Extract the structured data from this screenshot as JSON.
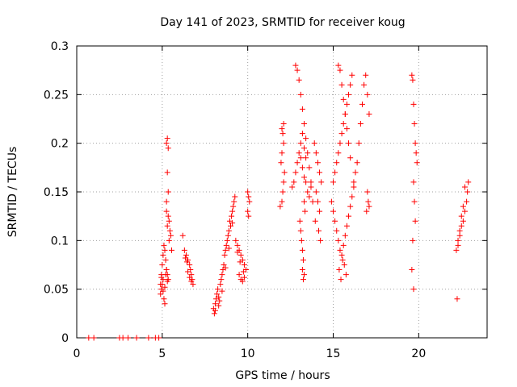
{
  "chart_data": {
    "type": "scatter",
    "title": "Day 141 of 2023, SRMTID for receiver koug",
    "xlabel": "GPS time / hours",
    "ylabel": "SRMTID / TECUs",
    "xlim": [
      0,
      24
    ],
    "ylim": [
      0,
      0.3
    ],
    "xticks": [
      0,
      5,
      10,
      15,
      20
    ],
    "xtick_labels": [
      "0",
      "5",
      "10",
      "15",
      "20"
    ],
    "yticks": [
      0,
      0.05,
      0.1,
      0.15,
      0.2,
      0.25,
      0.3
    ],
    "ytick_labels": [
      "0",
      "0.05",
      "0.1",
      "0.15",
      "0.2",
      "0.25",
      "0.3"
    ],
    "grid": true,
    "marker": "+",
    "color": "#ff0000",
    "series": [
      {
        "name": "SRMTID",
        "x": [
          0.7,
          1.0,
          2.5,
          2.7,
          3.0,
          3.5,
          4.2,
          4.6,
          4.8,
          4.9,
          4.95,
          5.0,
          5.05,
          5.1,
          5.15,
          5.2,
          5.25,
          5.3,
          5.35,
          5.4,
          5.45,
          5.5,
          5.55,
          5.25,
          5.3,
          5.35,
          5.3,
          5.35,
          5.25,
          5.35,
          5.3,
          5.4,
          5.25,
          4.9,
          4.95,
          5.0,
          5.05,
          5.1,
          5.15,
          5.2,
          5.25,
          5.3,
          5.05,
          5.15,
          4.95,
          6.2,
          6.3,
          6.4,
          6.5,
          6.6,
          6.65,
          6.7,
          6.75,
          6.8,
          6.7,
          6.6,
          6.5,
          6.35,
          6.45,
          8.0,
          8.05,
          8.1,
          8.15,
          8.2,
          8.25,
          8.3,
          8.35,
          8.4,
          8.45,
          8.5,
          8.55,
          8.6,
          8.65,
          8.7,
          8.75,
          8.8,
          8.85,
          8.9,
          8.95,
          9.0,
          9.05,
          9.1,
          9.15,
          9.2,
          9.25,
          8.1,
          8.3,
          8.5,
          8.7,
          8.9,
          9.1,
          9.3,
          9.4,
          9.5,
          9.6,
          9.7,
          9.8,
          9.9,
          9.5,
          9.6,
          9.7,
          9.8,
          9.4,
          9.55,
          9.75,
          10.0,
          10.05,
          10.1,
          10.0,
          10.05,
          11.9,
          12.0,
          12.05,
          12.1,
          12.15,
          11.95,
          12.0,
          12.1,
          12.05,
          12.0,
          12.1,
          12.6,
          12.7,
          12.8,
          12.9,
          13.0,
          13.1,
          13.2,
          13.3,
          13.4,
          13.5,
          13.6,
          13.7,
          13.8,
          12.8,
          12.9,
          13.0,
          13.1,
          13.2,
          13.3,
          13.4,
          13.5,
          13.6,
          13.7,
          13.1,
          13.2,
          13.3,
          13.4,
          13.05,
          13.1,
          13.15,
          13.2,
          13.25,
          13.2,
          13.3,
          13.25,
          13.35,
          13.3,
          13.9,
          14.0,
          14.1,
          14.2,
          14.3,
          14.0,
          14.1,
          14.2,
          13.95,
          14.15,
          14.25,
          14.9,
          15.0,
          15.1,
          15.2,
          15.3,
          15.4,
          15.5,
          15.6,
          15.7,
          15.8,
          15.9,
          16.0,
          16.1,
          16.2,
          15.0,
          15.1,
          15.2,
          15.3,
          15.4,
          15.5,
          15.6,
          15.7,
          15.8,
          15.9,
          16.0,
          16.1,
          15.3,
          15.4,
          15.5,
          15.6,
          15.7,
          15.8,
          15.9,
          16.0,
          15.35,
          15.45,
          15.55,
          15.65,
          15.75,
          16.2,
          16.3,
          16.4,
          16.5,
          16.6,
          16.7,
          16.8,
          16.9,
          17.0,
          17.1,
          17.0,
          17.05,
          17.1,
          16.95,
          19.6,
          19.65,
          19.7,
          19.75,
          19.8,
          19.85,
          19.9,
          19.7,
          19.75,
          19.8,
          19.65,
          19.6,
          19.7,
          22.2,
          22.3,
          22.4,
          22.5,
          22.6,
          22.7,
          22.8,
          22.85,
          22.9,
          22.4,
          22.5,
          22.6,
          22.3,
          22.7,
          22.25
        ],
        "y": [
          0,
          0,
          0,
          0,
          0,
          0,
          0,
          0,
          0,
          0.055,
          0.065,
          0.075,
          0.085,
          0.095,
          0.09,
          0.08,
          0.07,
          0.065,
          0.06,
          0.1,
          0.11,
          0.105,
          0.09,
          0.2,
          0.205,
          0.195,
          0.17,
          0.15,
          0.14,
          0.125,
          0.115,
          0.12,
          0.13,
          0.045,
          0.05,
          0.055,
          0.06,
          0.04,
          0.035,
          0.065,
          0.07,
          0.058,
          0.048,
          0.052,
          0.062,
          0.105,
          0.09,
          0.085,
          0.08,
          0.075,
          0.07,
          0.065,
          0.06,
          0.055,
          0.058,
          0.062,
          0.068,
          0.082,
          0.078,
          0.03,
          0.025,
          0.035,
          0.04,
          0.045,
          0.05,
          0.042,
          0.038,
          0.055,
          0.06,
          0.065,
          0.07,
          0.075,
          0.085,
          0.09,
          0.095,
          0.1,
          0.105,
          0.11,
          0.12,
          0.115,
          0.125,
          0.13,
          0.135,
          0.14,
          0.145,
          0.028,
          0.033,
          0.048,
          0.072,
          0.092,
          0.118,
          0.1,
          0.095,
          0.09,
          0.085,
          0.08,
          0.075,
          0.07,
          0.065,
          0.06,
          0.058,
          0.062,
          0.088,
          0.078,
          0.068,
          0.15,
          0.145,
          0.14,
          0.13,
          0.125,
          0.135,
          0.14,
          0.15,
          0.16,
          0.17,
          0.18,
          0.19,
          0.2,
          0.21,
          0.215,
          0.22,
          0.155,
          0.16,
          0.17,
          0.18,
          0.19,
          0.185,
          0.175,
          0.165,
          0.16,
          0.15,
          0.145,
          0.155,
          0.14,
          0.28,
          0.275,
          0.265,
          0.25,
          0.235,
          0.22,
          0.205,
          0.19,
          0.175,
          0.16,
          0.2,
          0.21,
          0.195,
          0.185,
          0.12,
          0.11,
          0.1,
          0.09,
          0.08,
          0.07,
          0.065,
          0.06,
          0.13,
          0.14,
          0.2,
          0.19,
          0.18,
          0.17,
          0.16,
          0.15,
          0.14,
          0.13,
          0.12,
          0.11,
          0.1,
          0.14,
          0.13,
          0.12,
          0.11,
          0.1,
          0.09,
          0.085,
          0.095,
          0.105,
          0.115,
          0.125,
          0.135,
          0.145,
          0.155,
          0.16,
          0.17,
          0.18,
          0.19,
          0.2,
          0.21,
          0.22,
          0.23,
          0.24,
          0.25,
          0.26,
          0.27,
          0.28,
          0.275,
          0.26,
          0.245,
          0.23,
          0.215,
          0.2,
          0.185,
          0.07,
          0.06,
          0.08,
          0.075,
          0.065,
          0.16,
          0.17,
          0.18,
          0.2,
          0.22,
          0.24,
          0.26,
          0.27,
          0.25,
          0.23,
          0.15,
          0.14,
          0.135,
          0.13,
          0.27,
          0.265,
          0.24,
          0.22,
          0.2,
          0.19,
          0.18,
          0.16,
          0.14,
          0.12,
          0.1,
          0.07,
          0.05,
          0.09,
          0.1,
          0.11,
          0.115,
          0.12,
          0.13,
          0.14,
          0.15,
          0.16,
          0.105,
          0.125,
          0.135,
          0.095,
          0.155,
          0.04
        ]
      }
    ]
  }
}
